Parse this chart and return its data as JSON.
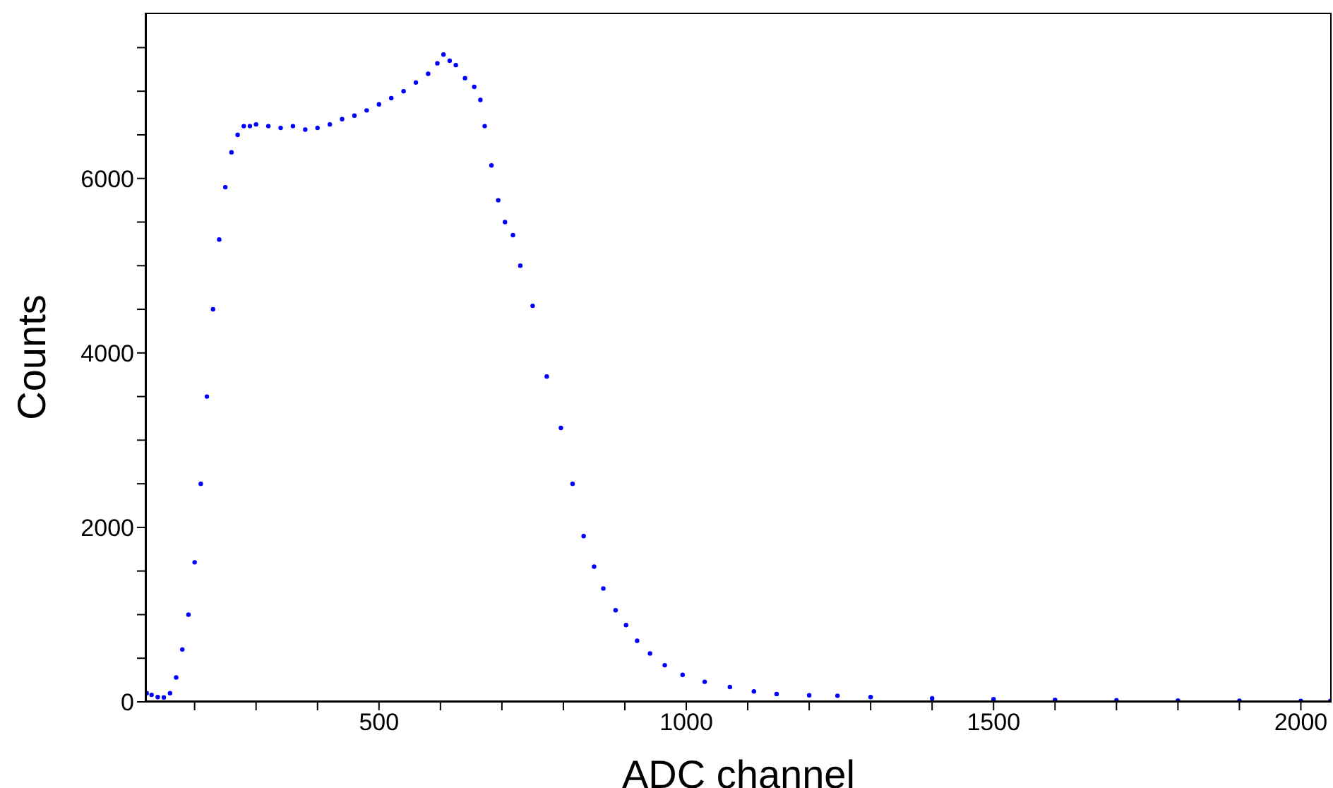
{
  "chart_data": {
    "type": "scatter",
    "xlabel": "ADC channel",
    "ylabel": "Counts",
    "marker": "circle",
    "xlim": [
      120,
      2050
    ],
    "ylim": [
      0,
      7900
    ],
    "xticks": [
      {
        "value": 200,
        "label": null
      },
      {
        "value": 300,
        "label": null
      },
      {
        "value": 400,
        "label": null
      },
      500,
      {
        "value": 600,
        "label": null
      },
      {
        "value": 700,
        "label": null
      },
      {
        "value": 800,
        "label": null
      },
      {
        "value": 900,
        "label": null
      },
      1000,
      {
        "value": 1100,
        "label": null
      },
      {
        "value": 1200,
        "label": null
      },
      {
        "value": 1300,
        "label": null
      },
      {
        "value": 1400,
        "label": null
      },
      1500,
      {
        "value": 1600,
        "label": null
      },
      {
        "value": 1700,
        "label": null
      },
      {
        "value": 1800,
        "label": null
      },
      {
        "value": 1900,
        "label": null
      },
      2000
    ],
    "yticks": [
      0,
      {
        "value": 500,
        "label": null
      },
      {
        "value": 1000,
        "label": null
      },
      {
        "value": 1500,
        "label": null
      },
      2000,
      {
        "value": 2500,
        "label": null
      },
      {
        "value": 3000,
        "label": null
      },
      {
        "value": 3500,
        "label": null
      },
      4000,
      {
        "value": 4500,
        "label": null
      },
      {
        "value": 5000,
        "label": null
      },
      {
        "value": 5500,
        "label": null
      },
      6000,
      {
        "value": 6500,
        "label": null
      },
      {
        "value": 7000,
        "label": null
      },
      {
        "value": 7500,
        "label": null
      }
    ],
    "series": [
      {
        "color": "#0000ff",
        "x": [
          122,
          130,
          140,
          150,
          160,
          170,
          180,
          190,
          200,
          210,
          220,
          230,
          240,
          250,
          260,
          270,
          280,
          290,
          300,
          320,
          340,
          360,
          380,
          400,
          420,
          440,
          460,
          480,
          500,
          520,
          540,
          560,
          580,
          595,
          605,
          615,
          625,
          640,
          655,
          665,
          672,
          683,
          694,
          705,
          718,
          730,
          750,
          773,
          796,
          815,
          833,
          850,
          865,
          885,
          902,
          920,
          941,
          965,
          994,
          1030,
          1071,
          1110,
          1147,
          1200,
          1246,
          1300,
          1400,
          1500,
          1600,
          1700,
          1800,
          1900,
          2000,
          2048
        ],
        "values": [
          100,
          80,
          55,
          50,
          100,
          280,
          600,
          1000,
          1600,
          2500,
          3500,
          4500,
          5300,
          5900,
          6300,
          6500,
          6600,
          6600,
          6620,
          6600,
          6580,
          6600,
          6560,
          6580,
          6620,
          6680,
          6720,
          6780,
          6850,
          6920,
          7000,
          7100,
          7200,
          7320,
          7420,
          7350,
          7300,
          7150,
          7050,
          6900,
          6600,
          6150,
          5750,
          5500,
          5350,
          5000,
          4540,
          3730,
          3140,
          2500,
          1900,
          1550,
          1300,
          1050,
          880,
          700,
          555,
          420,
          310,
          230,
          170,
          120,
          90,
          75,
          70,
          55,
          40,
          30,
          22,
          18,
          14,
          12,
          10,
          10
        ]
      }
    ]
  }
}
